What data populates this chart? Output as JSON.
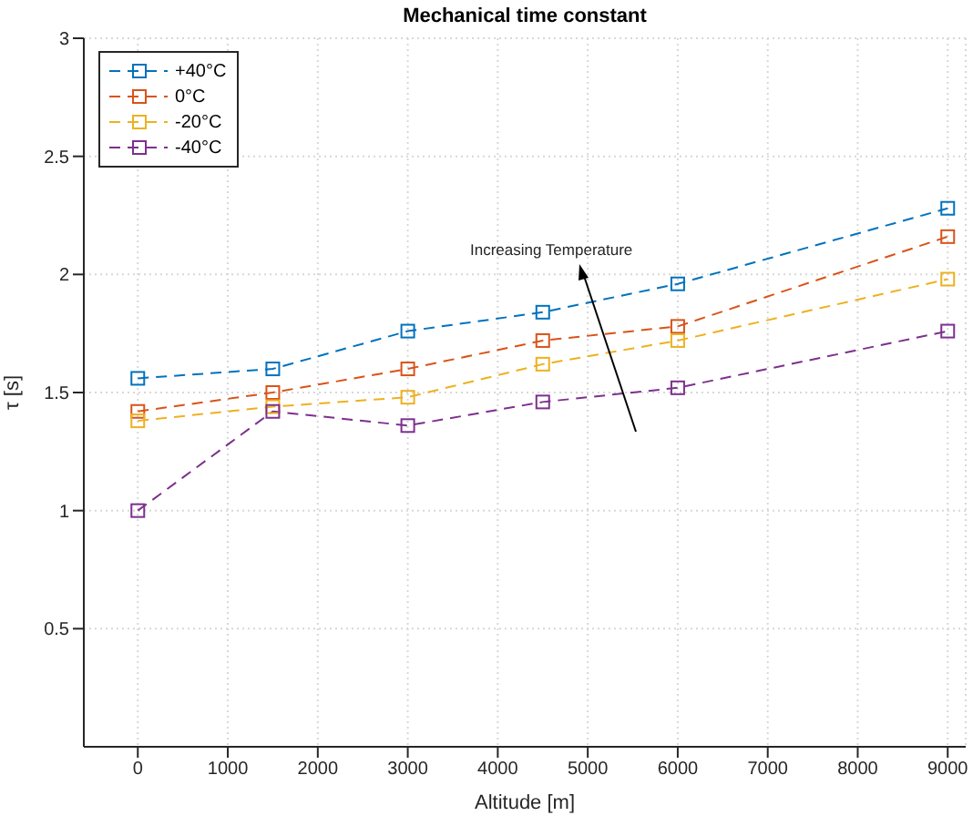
{
  "chart_data": {
    "type": "line",
    "title": "Mechanical time constant",
    "xlabel": "Altitude [m]",
    "ylabel": "τ [s]",
    "x": [
      0,
      1500,
      3000,
      4500,
      6000,
      9000
    ],
    "series": [
      {
        "name": "+40°C",
        "color": "#0072bd",
        "values": [
          1.56,
          1.6,
          1.76,
          1.84,
          1.96,
          2.28
        ]
      },
      {
        "name": "0°C",
        "color": "#d95319",
        "values": [
          1.42,
          1.5,
          1.6,
          1.72,
          1.78,
          2.16
        ]
      },
      {
        "name": "-20°C",
        "color": "#edb120",
        "values": [
          1.38,
          1.44,
          1.48,
          1.62,
          1.72,
          1.98
        ]
      },
      {
        "name": "-40°C",
        "color": "#7e2f8e",
        "values": [
          1.0,
          1.42,
          1.36,
          1.46,
          1.52,
          1.76
        ]
      }
    ],
    "xlim": [
      -600,
      9200
    ],
    "xticks": [
      0,
      1000,
      2000,
      3000,
      4000,
      5000,
      6000,
      7000,
      8000,
      9000
    ],
    "ylim": [
      0,
      3
    ],
    "yticks": [
      0.5,
      1,
      1.5,
      2,
      2.5,
      3
    ],
    "grid": true,
    "legend": "top left",
    "marker": "square",
    "line_style": "dashed",
    "annotations": [
      "Increasing Temperature"
    ]
  }
}
